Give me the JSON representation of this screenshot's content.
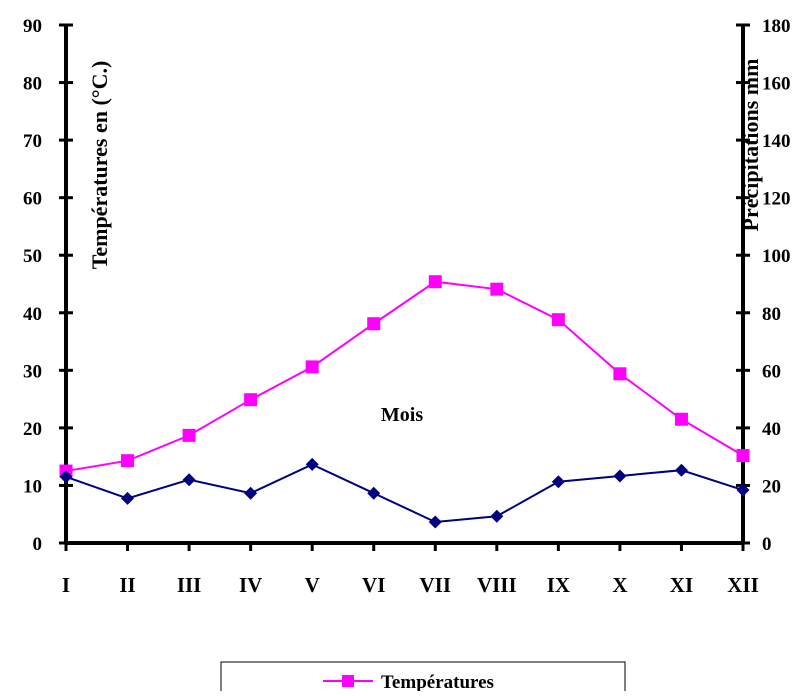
{
  "chart_data": {
    "type": "line",
    "categories": [
      "I",
      "II",
      "III",
      "IV",
      "V",
      "VI",
      "VII",
      "VIII",
      "IX",
      "X",
      "XI",
      "XII"
    ],
    "ylabel_left": "Températures en (°C.)",
    "ylabel_right": "Précipitations mm",
    "annotation": "Mois",
    "ylim_left": [
      0,
      90
    ],
    "ylim_right": [
      0,
      180
    ],
    "yticks_left": [
      "0",
      "10",
      "20",
      "30",
      "40",
      "50",
      "60",
      "70",
      "80",
      "90"
    ],
    "yticks_right": [
      "0",
      "20",
      "40",
      "60",
      "80",
      "100",
      "120",
      "140",
      "160",
      "180"
    ],
    "grid": false,
    "legend_position": "bottom",
    "series": [
      {
        "name": "Températures",
        "axis": "left",
        "color": "#ff00ff",
        "marker": "square",
        "values": [
          12.5,
          14.3,
          18.7,
          24.9,
          30.6,
          38.1,
          45.4,
          44.1,
          38.8,
          29.4,
          21.5,
          15.2
        ]
      },
      {
        "axis": "right",
        "color": "#000080",
        "marker": "diamond",
        "values": [
          23,
          15.5,
          22,
          17.3,
          27.3,
          17.3,
          7.3,
          9.3,
          21.3,
          23.3,
          25.3,
          18.4
        ]
      }
    ]
  }
}
